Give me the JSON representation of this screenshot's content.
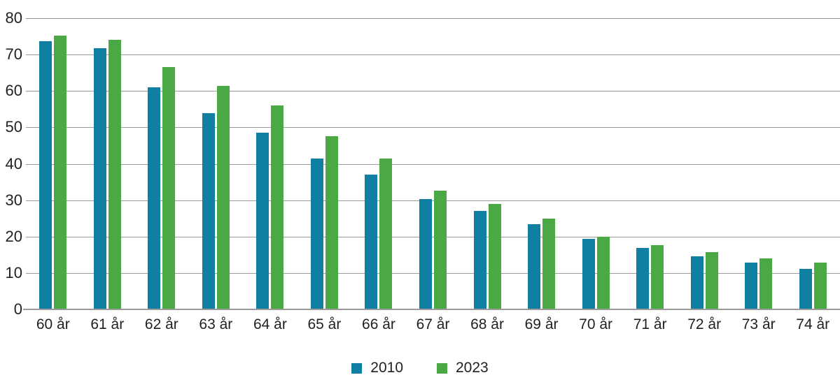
{
  "chart_data": {
    "type": "bar",
    "categories": [
      "60 år",
      "61 år",
      "62 år",
      "63 år",
      "64 år",
      "65 år",
      "66 år",
      "67 år",
      "68 år",
      "69 år",
      "70 år",
      "71 år",
      "72 år",
      "73 år",
      "74 år"
    ],
    "series": [
      {
        "name": "2010",
        "color": "#0f80a2",
        "values": [
          73.7,
          71.8,
          61.0,
          54.0,
          48.5,
          41.5,
          37.1,
          30.4,
          27.1,
          23.5,
          19.4,
          16.9,
          14.5,
          12.8,
          11.1
        ]
      },
      {
        "name": "2023",
        "color": "#4aa945",
        "values": [
          75.2,
          74.0,
          66.6,
          61.3,
          56.0,
          47.5,
          41.5,
          32.6,
          28.9,
          25.0,
          20.0,
          17.7,
          15.8,
          14.0,
          12.8
        ]
      }
    ],
    "ylim": [
      0,
      80
    ],
    "yticks": [
      0,
      10,
      20,
      30,
      40,
      50,
      60,
      70,
      80
    ],
    "grid": true,
    "legend_position": "bottom-center"
  },
  "colors": {
    "background": "#ffffff",
    "gridline": "#9b9b9b",
    "axis_line": "#9b9b9b",
    "text": "#231f20",
    "series_2010": "#0f80a2",
    "series_2023": "#4aa945"
  },
  "legend": {
    "items": [
      {
        "label": "2010"
      },
      {
        "label": "2023"
      }
    ]
  }
}
